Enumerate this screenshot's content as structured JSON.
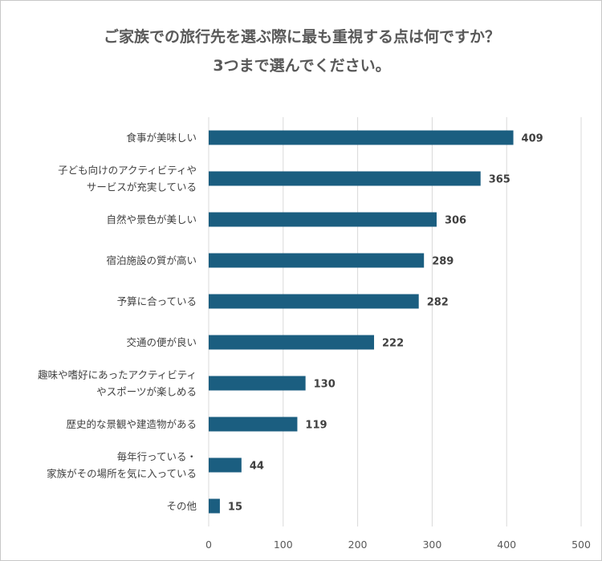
{
  "chart_data": {
    "type": "bar",
    "orientation": "horizontal",
    "title": [
      "ご家族での旅行先を選ぶ際に最も重視する点は何ですか？",
      "3つまで選んでください。"
    ],
    "categories": [
      [
        "食事が美味しい"
      ],
      [
        "子ども向けのアクティビティや",
        "サービスが充実している"
      ],
      [
        "自然や景色が美しい"
      ],
      [
        "宿泊施設の質が高い"
      ],
      [
        "予算に合っている"
      ],
      [
        "交通の便が良い"
      ],
      [
        "趣味や嗜好にあったアクティビティ",
        "やスポーツが楽しめる"
      ],
      [
        "歴史的な景観や建造物がある"
      ],
      [
        "毎年行っている・",
        "家族がその場所を気に入っている"
      ],
      [
        "その他"
      ]
    ],
    "values": [
      409,
      365,
      306,
      289,
      282,
      222,
      130,
      119,
      44,
      15
    ],
    "xlim": [
      0,
      500
    ],
    "xticks": [
      0,
      100,
      200,
      300,
      400,
      500
    ],
    "grid": "vertical",
    "bar_color": "#1b5e80",
    "gridline_color": "#d9d9d9"
  }
}
